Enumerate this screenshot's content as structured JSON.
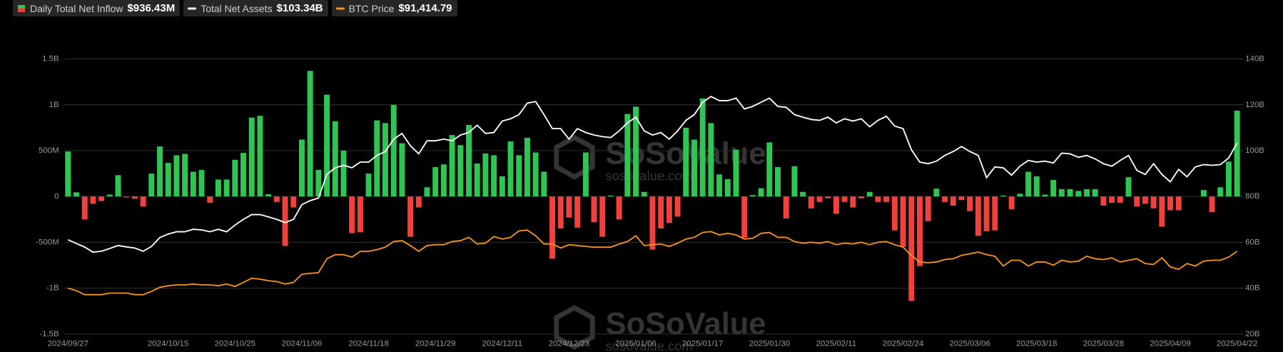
{
  "chart_data": {
    "type": "bar-line",
    "categories": [
      "2024/09/27",
      null,
      null,
      null,
      null,
      null,
      null,
      null,
      null,
      null,
      null,
      null,
      "2024/10/15",
      null,
      null,
      null,
      null,
      null,
      null,
      null,
      "2024/10/25",
      null,
      null,
      null,
      null,
      null,
      null,
      null,
      "2024/11/06",
      null,
      null,
      null,
      null,
      null,
      null,
      null,
      "2024/11/18",
      null,
      null,
      null,
      null,
      null,
      null,
      null,
      "2024/11/29",
      null,
      null,
      null,
      null,
      null,
      null,
      null,
      "2024/12/11",
      null,
      null,
      null,
      null,
      null,
      null,
      null,
      "2024/12/23",
      null,
      null,
      null,
      null,
      null,
      null,
      null,
      "2025/01/06",
      null,
      null,
      null,
      null,
      null,
      null,
      null,
      "2025/01/17",
      null,
      null,
      null,
      null,
      null,
      null,
      null,
      "2025/01/30",
      null,
      null,
      null,
      null,
      null,
      null,
      null,
      "2025/02/11",
      null,
      null,
      null,
      null,
      null,
      null,
      null,
      "2025/02/24",
      null,
      null,
      null,
      null,
      null,
      null,
      null,
      "2025/03/06",
      null,
      null,
      null,
      null,
      null,
      null,
      null,
      "2025/03/18",
      null,
      null,
      null,
      null,
      null,
      null,
      null,
      "2025/03/28",
      null,
      null,
      null,
      null,
      null,
      null,
      null,
      "2025/04/09",
      null,
      null,
      null,
      null,
      null,
      null,
      null,
      "2025/04/22"
    ],
    "series": [
      {
        "name": "Daily Total Net Inflow",
        "legend_value": "$936.43M",
        "color": "#2fc552",
        "negative_color": "#f2413d",
        "axis": "y",
        "values": [
          490,
          45,
          -250,
          -80,
          -50,
          20,
          232,
          -10,
          -25,
          -110,
          250,
          545,
          366,
          450,
          465,
          270,
          290,
          -70,
          185,
          185,
          400,
          475,
          860,
          880,
          25,
          -60,
          -540,
          -120,
          620,
          1370,
          290,
          1110,
          820,
          500,
          -400,
          -390,
          250,
          830,
          800,
          1000,
          580,
          -440,
          -120,
          100,
          320,
          350,
          670,
          560,
          780,
          360,
          470,
          450,
          220,
          600,
          450,
          640,
          480,
          270,
          -680,
          -350,
          -230,
          -340,
          480,
          -280,
          -440,
          10,
          -250,
          900,
          980,
          50,
          -580,
          -350,
          -290,
          -220,
          750,
          620,
          1070,
          800,
          240,
          190,
          510,
          -450,
          15,
          90,
          590,
          320,
          -240,
          330,
          50,
          -130,
          -60,
          -20,
          -190,
          -60,
          -120,
          -20,
          50,
          -60,
          -60,
          -370,
          -550,
          -1140,
          -760,
          -270,
          85,
          -60,
          -100,
          -40,
          -160,
          -430,
          -380,
          -370,
          10,
          -140,
          30,
          270,
          220,
          20,
          180,
          80,
          80,
          60,
          80,
          80,
          -100,
          -70,
          -70,
          210,
          -110,
          -80,
          -130,
          -330,
          -150,
          -150,
          0,
          0,
          70,
          -170,
          100,
          380,
          936.43
        ]
      },
      {
        "name": "Total Net Assets",
        "legend_value": "$103.34B",
        "color": "#ffffff",
        "axis": "y2",
        "values": [
          61.1,
          59.5,
          57.9,
          55.7,
          56.1,
          57.3,
          58.6,
          58,
          57.5,
          56.1,
          58.2,
          62.1,
          63.6,
          64.6,
          64.6,
          65.7,
          65.4,
          64.6,
          65.7,
          64.6,
          67.5,
          70,
          72.1,
          72.1,
          71.1,
          70,
          68.6,
          70,
          76.4,
          78.2,
          79.3,
          89.6,
          92.5,
          93.6,
          92.5,
          95,
          95,
          97.9,
          99.6,
          105,
          107.5,
          102.1,
          98.6,
          104.3,
          104.3,
          105,
          104.3,
          106.8,
          107.9,
          111.1,
          107.5,
          107.9,
          112.9,
          113.9,
          115.7,
          120.7,
          121.4,
          115.7,
          109.6,
          109.6,
          105,
          109.6,
          107.9,
          106.8,
          106.1,
          105.7,
          108.6,
          112.1,
          114.6,
          108.6,
          106.8,
          107.9,
          105,
          108.6,
          113.2,
          115.7,
          121.1,
          123.6,
          121.8,
          121.8,
          122.9,
          118.2,
          119.3,
          121.1,
          122.9,
          119.3,
          118.9,
          115.7,
          114.6,
          113.6,
          113.2,
          114.6,
          112.1,
          113.9,
          112.9,
          113.9,
          110.4,
          113.2,
          115,
          110.7,
          109.6,
          100.4,
          95,
          94.3,
          95.4,
          97.9,
          99.6,
          101.8,
          99.6,
          97.9,
          88.2,
          92.9,
          92.5,
          89.3,
          93.2,
          95.7,
          95,
          95.4,
          94.6,
          98.9,
          98.6,
          97.1,
          97.9,
          96.4,
          94.3,
          93.2,
          95.7,
          97.9,
          91.4,
          89.6,
          94.3,
          89.6,
          86.4,
          91.8,
          88.6,
          92.9,
          93.9,
          93.6,
          93.9,
          96.8,
          103.34
        ]
      },
      {
        "name": "BTC Price",
        "legend_value": "$91,414.79",
        "color": "#f7931a",
        "axis": "y3",
        "values": [
          65800,
          64100,
          61300,
          61300,
          61300,
          62400,
          62400,
          62400,
          61300,
          61300,
          63600,
          66400,
          67500,
          68100,
          68100,
          68700,
          68100,
          68100,
          67500,
          68700,
          67000,
          69800,
          72700,
          72100,
          71000,
          70400,
          68700,
          69800,
          75500,
          76100,
          76600,
          86300,
          89100,
          89100,
          87400,
          91400,
          91400,
          92600,
          94300,
          98200,
          98800,
          95400,
          91400,
          95400,
          96000,
          96000,
          98200,
          98800,
          101100,
          96500,
          97100,
          101700,
          99900,
          101100,
          105600,
          106200,
          102200,
          96500,
          96500,
          93700,
          96000,
          95400,
          94800,
          94300,
          94300,
          94300,
          96500,
          98200,
          102200,
          95400,
          96000,
          96500,
          94800,
          97100,
          99900,
          101100,
          104500,
          105100,
          102800,
          103900,
          102800,
          99900,
          100500,
          103900,
          104500,
          101100,
          101100,
          98200,
          97100,
          97700,
          97100,
          98200,
          96000,
          97100,
          96500,
          97700,
          96000,
          97700,
          98200,
          96000,
          94300,
          88600,
          84000,
          83500,
          84000,
          85700,
          86300,
          88600,
          89700,
          90900,
          89100,
          88000,
          81200,
          85200,
          85200,
          81200,
          84000,
          84000,
          81800,
          85200,
          84000,
          84600,
          88000,
          86300,
          85700,
          86900,
          84000,
          85200,
          86300,
          82900,
          82300,
          86900,
          80600,
          78900,
          82900,
          81200,
          84600,
          85200,
          85200,
          87400,
          91414.79
        ]
      }
    ],
    "ylim": [
      -1500,
      1500
    ],
    "yticks": [
      {
        "value": -1500,
        "label": "-1.5B"
      },
      {
        "value": -1000,
        "label": "-1B"
      },
      {
        "value": -500,
        "label": "-500M"
      },
      0,
      {
        "value": 500,
        "label": "500M"
      },
      {
        "value": 1000,
        "label": "1B"
      },
      {
        "value": 1500,
        "label": "1.5B"
      }
    ],
    "y2lim": [
      20,
      140
    ],
    "y2ticks": [
      {
        "value": 20,
        "label": "20B"
      },
      {
        "value": 40,
        "label": "40B"
      },
      {
        "value": 60,
        "label": "60B"
      },
      {
        "value": 80,
        "label": "80B"
      },
      {
        "value": 100,
        "label": "100B"
      },
      {
        "value": 120,
        "label": "120B"
      },
      {
        "value": 140,
        "label": "140B"
      }
    ],
    "y3lim": [
      34000,
      225000
    ],
    "grid": true,
    "watermark": {
      "brand": "SoSoValue",
      "site": "sosovalue.com"
    }
  }
}
